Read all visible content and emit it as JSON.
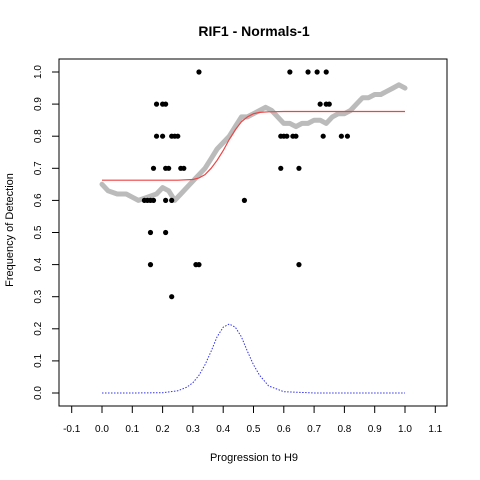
{
  "chart_data": {
    "type": "scatter",
    "title": "RIF1 - Normals-1",
    "xlabel": "Progression to H9",
    "ylabel": "Frequency of Detection",
    "xlim": [
      -0.1,
      1.1
    ],
    "ylim": [
      0.0,
      1.0
    ],
    "x_ticks": [
      "-0.1",
      "0.0",
      "0.1",
      "0.2",
      "0.3",
      "0.4",
      "0.5",
      "0.6",
      "0.7",
      "0.8",
      "0.9",
      "1.0",
      "1.1"
    ],
    "y_ticks": [
      "0.0",
      "0.1",
      "0.2",
      "0.3",
      "0.4",
      "0.5",
      "0.6",
      "0.7",
      "0.8",
      "0.9",
      "1.0"
    ],
    "grid": false,
    "legend": "none",
    "colors": {
      "points": "#000000",
      "smoothed": "#bbbbbb",
      "fit": "#ee4444",
      "density": "#3333ee"
    },
    "series": [
      {
        "style": "points",
        "points": [
          [
            0.14,
            0.6
          ],
          [
            0.15,
            0.6
          ],
          [
            0.16,
            0.6
          ],
          [
            0.17,
            0.6
          ],
          [
            0.16,
            0.5
          ],
          [
            0.16,
            0.4
          ],
          [
            0.17,
            0.7
          ],
          [
            0.18,
            0.8
          ],
          [
            0.18,
            0.9
          ],
          [
            0.2,
            0.9
          ],
          [
            0.21,
            0.9
          ],
          [
            0.2,
            0.8
          ],
          [
            0.21,
            0.7
          ],
          [
            0.22,
            0.7
          ],
          [
            0.21,
            0.6
          ],
          [
            0.21,
            0.5
          ],
          [
            0.23,
            0.8
          ],
          [
            0.24,
            0.8
          ],
          [
            0.25,
            0.8
          ],
          [
            0.23,
            0.6
          ],
          [
            0.23,
            0.3
          ],
          [
            0.26,
            0.7
          ],
          [
            0.27,
            0.7
          ],
          [
            0.32,
            1.0
          ],
          [
            0.31,
            0.4
          ],
          [
            0.32,
            0.4
          ],
          [
            0.47,
            0.6
          ],
          [
            0.59,
            0.7
          ],
          [
            0.59,
            0.8
          ],
          [
            0.6,
            0.8
          ],
          [
            0.61,
            0.8
          ],
          [
            0.62,
            1.0
          ],
          [
            0.63,
            0.8
          ],
          [
            0.64,
            0.8
          ],
          [
            0.65,
            0.7
          ],
          [
            0.65,
            0.4
          ],
          [
            0.68,
            1.0
          ],
          [
            0.71,
            1.0
          ],
          [
            0.72,
            0.9
          ],
          [
            0.73,
            0.8
          ],
          [
            0.74,
            1.0
          ],
          [
            0.74,
            0.9
          ],
          [
            0.75,
            0.9
          ],
          [
            0.79,
            0.8
          ],
          [
            0.81,
            0.8
          ]
        ]
      },
      {
        "style": "smoothed",
        "x": [
          0.0,
          0.02,
          0.05,
          0.08,
          0.1,
          0.12,
          0.15,
          0.18,
          0.2,
          0.22,
          0.24,
          0.26,
          0.28,
          0.3,
          0.32,
          0.34,
          0.36,
          0.38,
          0.4,
          0.42,
          0.44,
          0.46,
          0.48,
          0.5,
          0.52,
          0.54,
          0.56,
          0.58,
          0.6,
          0.62,
          0.64,
          0.66,
          0.68,
          0.7,
          0.72,
          0.74,
          0.76,
          0.78,
          0.8,
          0.82,
          0.84,
          0.86,
          0.88,
          0.9,
          0.92,
          0.94,
          0.96,
          0.98,
          1.0
        ],
        "y": [
          0.65,
          0.63,
          0.62,
          0.62,
          0.61,
          0.6,
          0.61,
          0.62,
          0.64,
          0.63,
          0.6,
          0.62,
          0.64,
          0.66,
          0.68,
          0.7,
          0.73,
          0.76,
          0.78,
          0.8,
          0.83,
          0.86,
          0.86,
          0.87,
          0.88,
          0.89,
          0.88,
          0.86,
          0.84,
          0.84,
          0.83,
          0.84,
          0.84,
          0.85,
          0.85,
          0.84,
          0.86,
          0.87,
          0.87,
          0.88,
          0.9,
          0.92,
          0.92,
          0.93,
          0.93,
          0.94,
          0.95,
          0.96,
          0.95
        ]
      },
      {
        "style": "fit",
        "x": [
          0.0,
          0.05,
          0.1,
          0.15,
          0.2,
          0.25,
          0.3,
          0.32,
          0.34,
          0.36,
          0.38,
          0.4,
          0.42,
          0.44,
          0.46,
          0.48,
          0.5,
          0.52,
          0.55,
          0.6,
          0.7,
          0.8,
          0.9,
          1.0
        ],
        "y": [
          0.663,
          0.663,
          0.663,
          0.663,
          0.663,
          0.663,
          0.665,
          0.67,
          0.68,
          0.7,
          0.725,
          0.755,
          0.79,
          0.82,
          0.845,
          0.86,
          0.87,
          0.874,
          0.876,
          0.877,
          0.877,
          0.877,
          0.877,
          0.877
        ]
      },
      {
        "style": "density",
        "x": [
          0.0,
          0.1,
          0.2,
          0.25,
          0.28,
          0.3,
          0.32,
          0.34,
          0.36,
          0.38,
          0.4,
          0.42,
          0.44,
          0.46,
          0.48,
          0.5,
          0.52,
          0.55,
          0.6,
          0.7,
          0.8,
          1.0
        ],
        "y": [
          0.0,
          0.0,
          0.001,
          0.007,
          0.018,
          0.032,
          0.055,
          0.088,
          0.13,
          0.175,
          0.205,
          0.215,
          0.205,
          0.175,
          0.13,
          0.088,
          0.055,
          0.022,
          0.004,
          0.0,
          0.0,
          0.0
        ]
      }
    ]
  }
}
